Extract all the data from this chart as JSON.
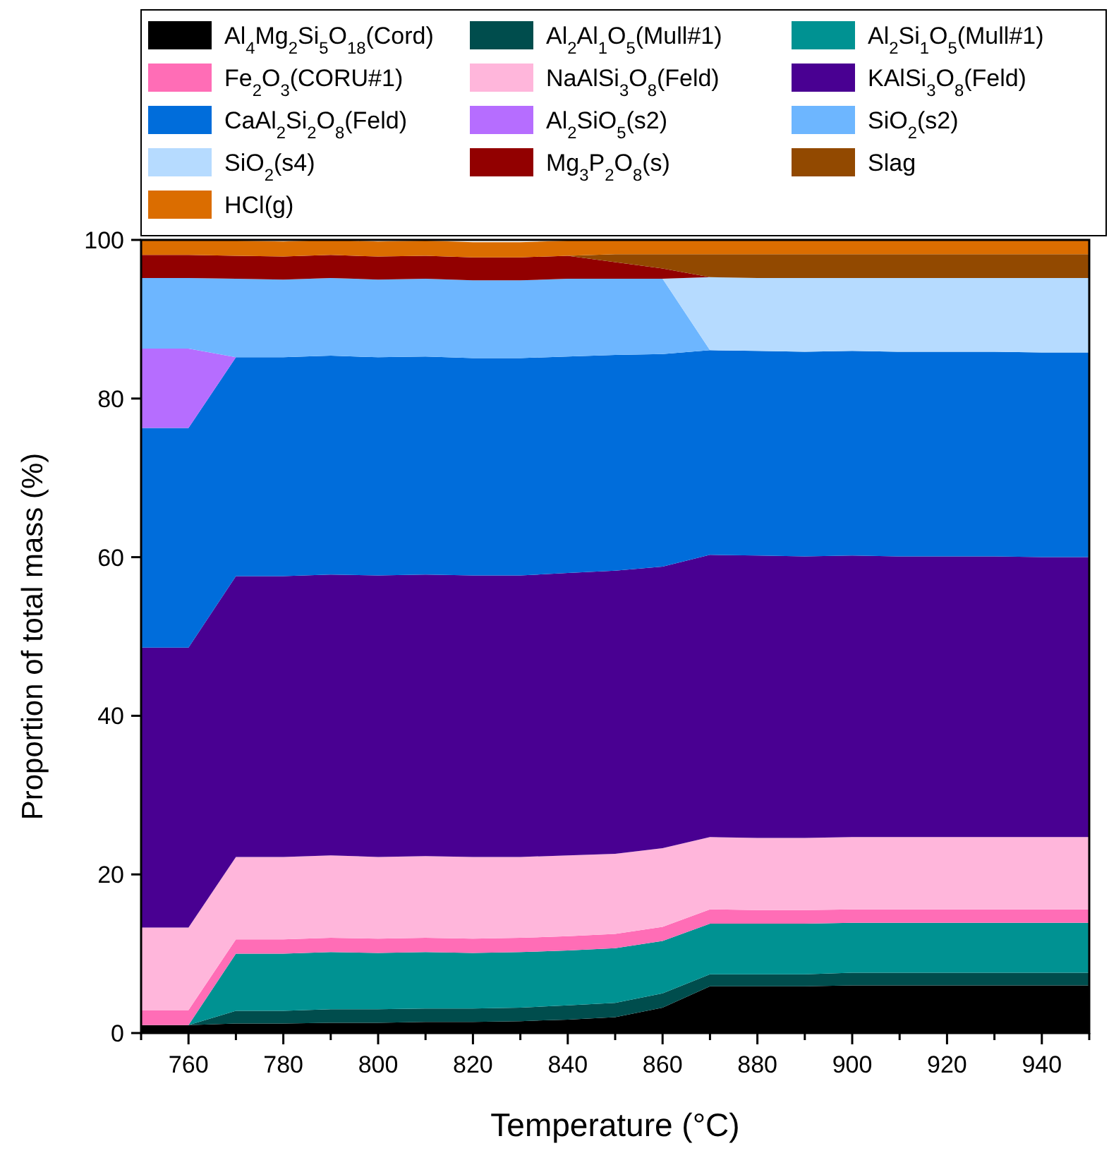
{
  "chart_data": {
    "type": "area",
    "stacked": true,
    "xlabel": "Temperature (°C)",
    "ylabel": "Proportion of total mass (%)",
    "x": [
      750,
      760,
      770,
      780,
      790,
      800,
      810,
      820,
      830,
      840,
      850,
      860,
      870,
      880,
      890,
      900,
      910,
      920,
      930,
      940,
      950
    ],
    "xlim": [
      750,
      950
    ],
    "xticks": [
      {
        "value": 750,
        "label": null
      },
      760,
      {
        "value": 770,
        "label": null
      },
      780,
      {
        "value": 790,
        "label": null
      },
      800,
      {
        "value": 810,
        "label": null
      },
      820,
      {
        "value": 830,
        "label": null
      },
      840,
      {
        "value": 850,
        "label": null
      },
      860,
      {
        "value": 870,
        "label": null
      },
      880,
      {
        "value": 890,
        "label": null
      },
      900,
      {
        "value": 910,
        "label": null
      },
      920,
      {
        "value": 930,
        "label": null
      },
      940,
      {
        "value": 950,
        "label": null
      }
    ],
    "ylim": [
      0,
      100
    ],
    "yticks": [
      0,
      20,
      40,
      60,
      80,
      100
    ],
    "grid": false,
    "legend": "top",
    "series": [
      {
        "name": "Al$_{4}$Mg$_{2}$Si$_{5}$O$_{18}$(Cord)",
        "color": "#000000",
        "values": [
          1.0,
          1.0,
          1.2,
          1.2,
          1.3,
          1.3,
          1.4,
          1.4,
          1.5,
          1.7,
          2.0,
          3.2,
          5.9,
          5.9,
          5.9,
          6.0,
          6.0,
          6.0,
          6.0,
          6.0,
          6.0
        ]
      },
      {
        "name": "Al$_{2}$Al$_{1}$O$_{5}$(Mull#1)",
        "color": "#004d4d",
        "values": [
          0,
          0,
          1.6,
          1.6,
          1.7,
          1.7,
          1.7,
          1.7,
          1.7,
          1.8,
          1.8,
          1.8,
          1.5,
          1.5,
          1.5,
          1.6,
          1.6,
          1.6,
          1.6,
          1.6,
          1.6
        ]
      },
      {
        "name": "Al$_{2}$Si$_{1}$O$_{5}$(Mull#1)",
        "color": "#009292",
        "values": [
          0,
          0,
          7.2,
          7.2,
          7.2,
          7.1,
          7.1,
          7.0,
          7.0,
          6.9,
          6.9,
          6.6,
          6.4,
          6.4,
          6.4,
          6.3,
          6.3,
          6.3,
          6.3,
          6.3,
          6.3
        ]
      },
      {
        "name": "Fe$_{2}$O$_{3}$(CORU#1)",
        "color": "#ff6db6",
        "values": [
          1.9,
          1.9,
          1.8,
          1.8,
          1.8,
          1.8,
          1.8,
          1.8,
          1.8,
          1.8,
          1.8,
          1.8,
          1.8,
          1.7,
          1.7,
          1.7,
          1.7,
          1.7,
          1.7,
          1.7,
          1.7
        ]
      },
      {
        "name": "NaAlSi$_{3}$O$_{8}$(Feld)",
        "color": "#ffb6db",
        "values": [
          10.4,
          10.4,
          10.4,
          10.4,
          10.4,
          10.3,
          10.3,
          10.3,
          10.2,
          10.2,
          10.1,
          9.9,
          9.1,
          9.1,
          9.1,
          9.1,
          9.1,
          9.1,
          9.1,
          9.1,
          9.1
        ]
      },
      {
        "name": "KAlSi$_{3}$O$_{8}$(Feld)",
        "color": "#490092",
        "values": [
          35.3,
          35.3,
          35.4,
          35.4,
          35.4,
          35.5,
          35.5,
          35.5,
          35.5,
          35.6,
          35.7,
          35.5,
          35.6,
          35.6,
          35.5,
          35.5,
          35.4,
          35.4,
          35.4,
          35.3,
          35.3
        ]
      },
      {
        "name": "CaAl$_{2}$Si$_{2}$O$_{8}$(Feld)",
        "color": "#006ddb",
        "values": [
          27.7,
          27.7,
          27.6,
          27.6,
          27.6,
          27.5,
          27.5,
          27.4,
          27.4,
          27.3,
          27.2,
          26.8,
          25.8,
          25.8,
          25.8,
          25.8,
          25.8,
          25.8,
          25.8,
          25.8,
          25.8
        ]
      },
      {
        "name": "Al$_{2}$SiO$_{5}$(s2)",
        "color": "#b66dff",
        "values": [
          10,
          10,
          0,
          0,
          0,
          0,
          0,
          0,
          0,
          0,
          0,
          0,
          0,
          0,
          0,
          0,
          0,
          0,
          0,
          0,
          0
        ]
      },
      {
        "name": "SiO$_{2}$(s2)",
        "color": "#6db6ff",
        "values": [
          8.9,
          8.9,
          9.9,
          9.8,
          9.8,
          9.8,
          9.8,
          9.8,
          9.8,
          9.8,
          9.6,
          9.5,
          0,
          0,
          0,
          0,
          0,
          0,
          0,
          0,
          0
        ]
      },
      {
        "name": "SiO$_{2}$(s4)",
        "color": "#b6dbff",
        "values": [
          0,
          0,
          0,
          0,
          0,
          0,
          0,
          0,
          0,
          0,
          0,
          0,
          9.2,
          9.2,
          9.3,
          9.2,
          9.3,
          9.3,
          9.3,
          9.4,
          9.4
        ]
      },
      {
        "name": "Mg$_{3}$P$_{2}$O$_{8}$(s)",
        "color": "#920000",
        "values": [
          2.9,
          2.9,
          2.9,
          2.9,
          2.9,
          2.9,
          2.9,
          2.9,
          2.9,
          2.9,
          2.1,
          1.3,
          0,
          0,
          0,
          0,
          0,
          0,
          0,
          0,
          0
        ]
      },
      {
        "name": "Slag",
        "color": "#924900",
        "values": [
          0,
          0,
          0,
          0,
          0,
          0,
          0,
          0,
          0,
          0,
          1.0,
          1.8,
          2.9,
          3.0,
          3.0,
          3.0,
          3.0,
          3.0,
          3.0,
          3.0,
          3.0
        ]
      },
      {
        "name": "HCl(g)",
        "color": "#db6d00",
        "values": [
          1.9,
          1.9,
          1.9,
          1.9,
          1.9,
          1.9,
          1.9,
          1.9,
          1.9,
          1.9,
          1.8,
          1.8,
          1.8,
          1.8,
          1.8,
          1.8,
          1.8,
          1.8,
          1.8,
          1.8,
          1.8
        ]
      }
    ]
  }
}
